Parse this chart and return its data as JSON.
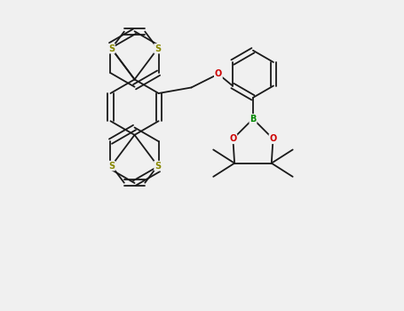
{
  "bg_color": "#f0f0f0",
  "bond_color": "#1a1a1a",
  "S_color": "#888800",
  "O_color": "#cc0000",
  "B_color": "#008800",
  "bond_lw": 1.3,
  "figsize": [
    4.55,
    3.5
  ],
  "dpi": 100,
  "xlim": [
    -1.0,
    8.5
  ],
  "ylim": [
    -0.5,
    7.5
  ]
}
